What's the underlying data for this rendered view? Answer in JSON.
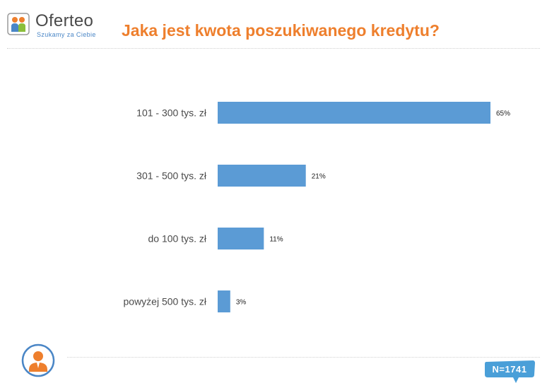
{
  "brand": {
    "name": "Oferteo",
    "tagline": "Szukamy za Ciebie",
    "colors": {
      "blue": "#4a86c6",
      "orange": "#ee7f2d",
      "green": "#8bbf3a"
    }
  },
  "title": "Jaka jest kwota poszukiwanego kredytu?",
  "sample_size": "N=1741",
  "icons": {
    "footer": "person-icon",
    "logo": "oferteo-logo-icon"
  },
  "chart_data": {
    "type": "bar",
    "orientation": "horizontal",
    "categories": [
      "101 - 300 tys. zł",
      "301 - 500 tys. zł",
      "do 100 tys. zł",
      "powyżej 500 tys. zł"
    ],
    "values": [
      65,
      21,
      11,
      3
    ],
    "value_labels": [
      "65%",
      "21%",
      "11%",
      "3%"
    ],
    "unit": "%",
    "xlim": [
      0,
      65
    ],
    "grid": false,
    "legend": "none",
    "bar_color": "#5b9bd5"
  }
}
